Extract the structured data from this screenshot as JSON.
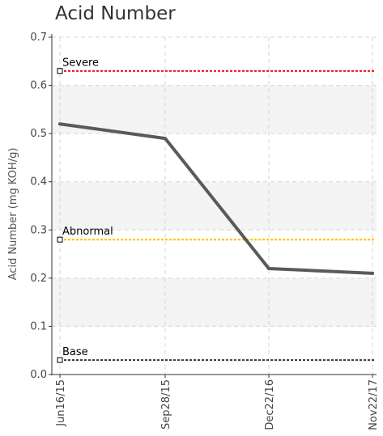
{
  "chart_data": {
    "type": "line",
    "title": "Acid Number",
    "xlabel": "",
    "ylabel": "Acid Number (mg KOH/g)",
    "categories": [
      "Jun16/15",
      "Sep28/15",
      "Dec22/16",
      "Nov22/17"
    ],
    "series": [
      {
        "values": [
          0.52,
          0.49,
          0.22,
          0.21
        ],
        "color": "#5a5a5a"
      }
    ],
    "ylim": [
      0,
      0.7
    ],
    "yticks": [
      "0.0",
      "0.1",
      "0.2",
      "0.3",
      "0.4",
      "0.5",
      "0.6",
      "0.7"
    ],
    "thresholds": [
      {
        "label": "Severe",
        "value": 0.63,
        "color": "#e8000b"
      },
      {
        "label": "Abnormal",
        "value": 0.28,
        "color": "#ffc000"
      },
      {
        "label": "Base",
        "value": 0.03,
        "color": "#333333"
      }
    ],
    "grid": true,
    "band_color": "#f4f4f4"
  }
}
